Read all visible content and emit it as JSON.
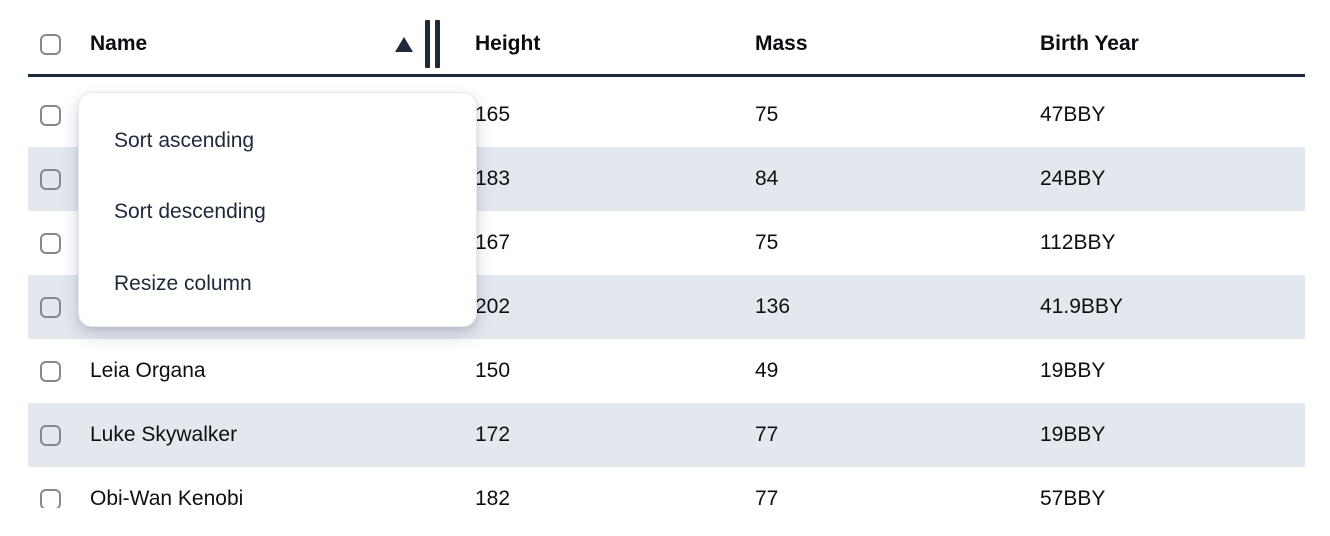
{
  "table": {
    "columns": {
      "name": "Name",
      "height": "Height",
      "mass": "Mass",
      "birth_year": "Birth Year"
    },
    "sort": {
      "column": "Name",
      "direction": "ascending"
    },
    "rows": [
      {
        "name": "",
        "height": "165",
        "mass": "75",
        "birth_year": "47BBY"
      },
      {
        "name": "",
        "height": "183",
        "mass": "84",
        "birth_year": "24BBY"
      },
      {
        "name": "",
        "height": "167",
        "mass": "75",
        "birth_year": "112BBY"
      },
      {
        "name": "",
        "height": "202",
        "mass": "136",
        "birth_year": "41.9BBY"
      },
      {
        "name": "Leia Organa",
        "height": "150",
        "mass": "49",
        "birth_year": "19BBY"
      },
      {
        "name": "Luke Skywalker",
        "height": "172",
        "mass": "77",
        "birth_year": "19BBY"
      },
      {
        "name": "Obi-Wan Kenobi",
        "height": "182",
        "mass": "77",
        "birth_year": "57BBY"
      }
    ]
  },
  "context_menu": {
    "items": [
      "Sort ascending",
      "Sort descending",
      "Resize column"
    ]
  },
  "colors": {
    "header_border": "#1e293b",
    "row_stripe": "#e3e8ef",
    "menu_text": "#1e293b",
    "cell_text": "#0d0f14",
    "checkbox_border": "#84898f"
  }
}
